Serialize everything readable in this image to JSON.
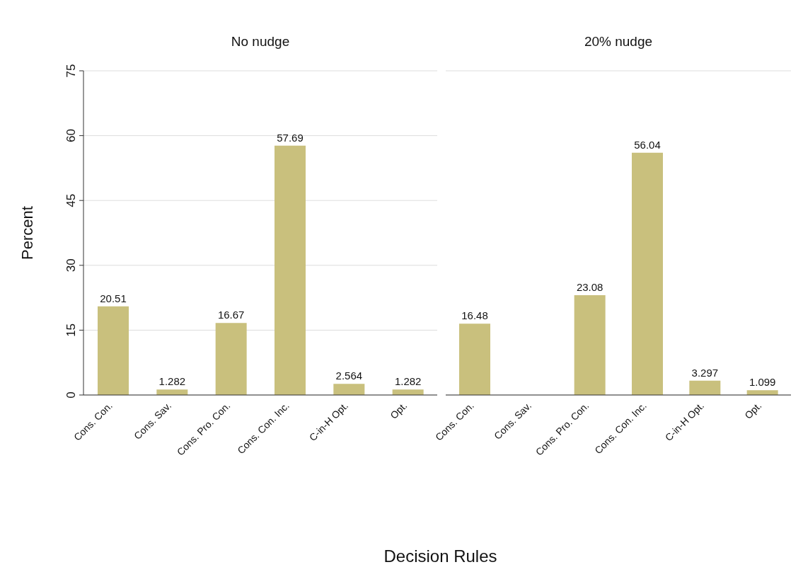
{
  "chart_data": [
    {
      "type": "bar",
      "title": "No nudge",
      "ylabel": "Percent",
      "xlabel": "Decision Rules",
      "categories": [
        "Cons. Con.",
        "Cons. Sav.",
        "Cons. Pro. Con.",
        "Cons. Con. Inc.",
        "C-in-H Opt.",
        "Opt."
      ],
      "values": [
        20.51,
        1.282,
        16.67,
        57.69,
        2.564,
        1.282
      ],
      "color": "#c9c07d",
      "data_labels": true,
      "ylim": [
        0,
        75
      ],
      "yticks": [
        0,
        15,
        30,
        45,
        60,
        75
      ],
      "grid": "y",
      "legend": false
    },
    {
      "type": "bar",
      "title": "20% nudge",
      "categories": [
        "Cons. Con.",
        "Cons. Sav.",
        "Cons. Pro. Con.",
        "Cons. Con. Inc.",
        "C-in-H Opt.",
        "Opt."
      ],
      "values": [
        16.48,
        null,
        23.08,
        56.04,
        3.297,
        1.099
      ],
      "color": "#c9c07d",
      "data_labels": true,
      "ylim": [
        0,
        75
      ],
      "yticks": [
        0,
        15,
        30,
        45,
        60,
        75
      ],
      "grid": "y",
      "legend": false,
      "tick_labels": "x"
    }
  ]
}
